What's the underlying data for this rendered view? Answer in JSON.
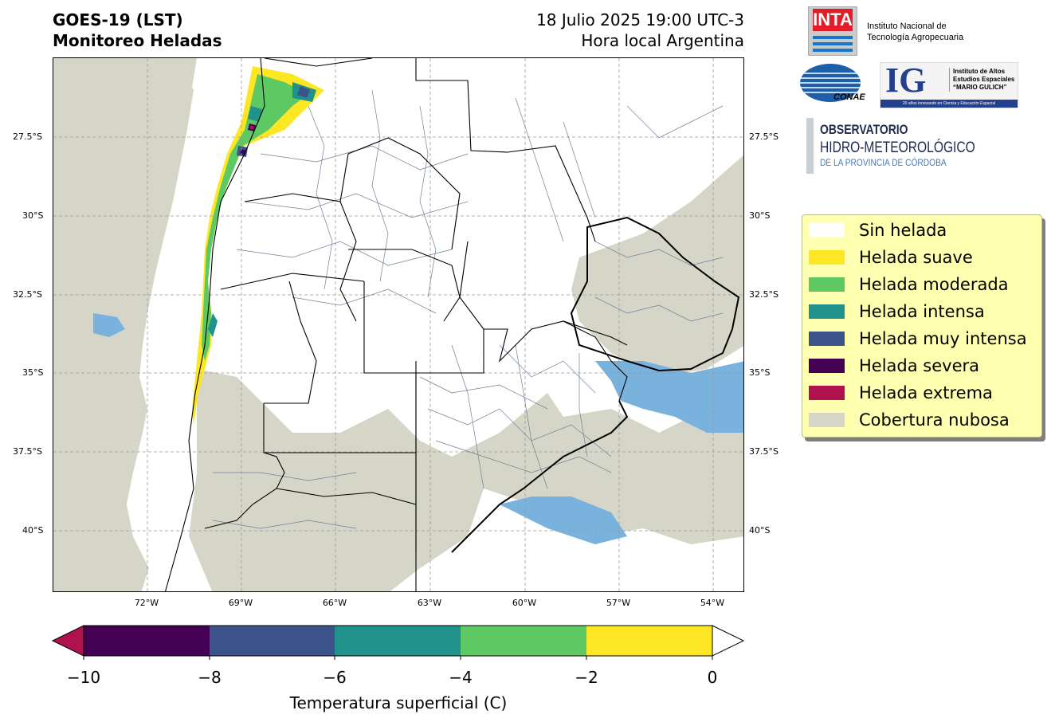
{
  "header": {
    "title_line1": "GOES-19 (LST)",
    "title_line2": "Monitoreo Heladas",
    "date_line1": "18 Julio 2025 19:00 UTC-3",
    "date_line2": "Hora local Argentina"
  },
  "logos": {
    "inta_word": "INTA",
    "inta_line1": "Instituto Nacional de",
    "inta_line2": "Tecnología Agropecuaria",
    "conae_word": "CONAE",
    "ig_letters": "IG",
    "ig_line1": "Instituto de Altos",
    "ig_line2": "Estudios Espaciales",
    "ig_line3": "“MARIO GULICH”",
    "ig_strip": "20 años innovando en Ciencia y Educación Espacial",
    "obs_line1": "OBSERVATORIO",
    "obs_line2": "HIDRO-METEOROLÓGICO",
    "obs_line3": "DE LA PROVINCIA DE CÓRDOBA"
  },
  "map": {
    "lat_labels": [
      "27.5°S",
      "30°S",
      "32.5°S",
      "35°S",
      "37.5°S",
      "40°S"
    ],
    "lon_labels": [
      "72°W",
      "69°W",
      "66°W",
      "63°W",
      "60°W",
      "57°W",
      "54°W"
    ]
  },
  "legend": {
    "items": [
      {
        "label": "Sin helada",
        "color": "#ffffff"
      },
      {
        "label": "Helada suave",
        "color": "#fde725"
      },
      {
        "label": "Helada moderada",
        "color": "#5ec962"
      },
      {
        "label": "Helada intensa",
        "color": "#21918c"
      },
      {
        "label": "Helada muy intensa",
        "color": "#3b528b"
      },
      {
        "label": "Helada severa",
        "color": "#440154"
      },
      {
        "label": "Helada extrema",
        "color": "#b0124e"
      },
      {
        "label": "Cobertura nubosa",
        "color": "#d6d6c8"
      }
    ]
  },
  "colorbar": {
    "labels": [
      "−10",
      "−8",
      "−6",
      "−4",
      "−2",
      "0"
    ],
    "title": "Temperatura superficial (C)",
    "colors": [
      "#440154",
      "#3b528b",
      "#21918c",
      "#5ec962",
      "#fde725"
    ],
    "under_color": "#b0124e",
    "over_color": "#ffffff"
  },
  "colors": {
    "cloud": "#d6d6c8",
    "water": "#7ab2de",
    "border": "#000000",
    "dept": "#6f7f96"
  }
}
